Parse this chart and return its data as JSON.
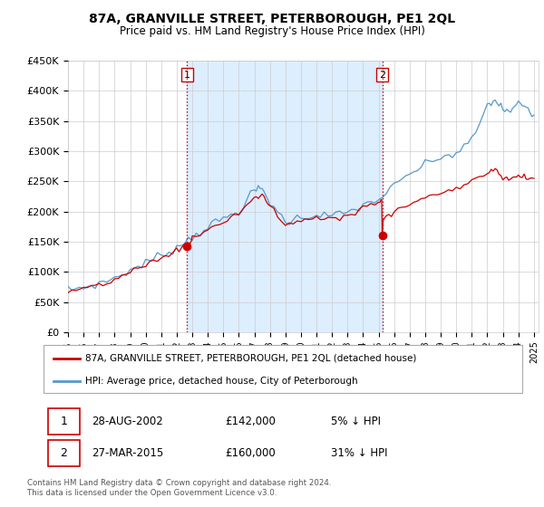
{
  "title": "87A, GRANVILLE STREET, PETERBOROUGH, PE1 2QL",
  "subtitle": "Price paid vs. HM Land Registry's House Price Index (HPI)",
  "legend_line1": "87A, GRANVILLE STREET, PETERBOROUGH, PE1 2QL (detached house)",
  "legend_line2": "HPI: Average price, detached house, City of Peterborough",
  "footnote": "Contains HM Land Registry data © Crown copyright and database right 2024.\nThis data is licensed under the Open Government Licence v3.0.",
  "transaction1_date": "28-AUG-2002",
  "transaction1_price": "£142,000",
  "transaction1_hpi": "5% ↓ HPI",
  "transaction2_date": "27-MAR-2015",
  "transaction2_price": "£160,000",
  "transaction2_hpi": "31% ↓ HPI",
  "price_line_color": "#cc0000",
  "hpi_line_color": "#5599cc",
  "shade_color": "#ddeeff",
  "vline_color": "#cc0000",
  "ylim_min": 0,
  "ylim_max": 450000,
  "yticks": [
    0,
    50000,
    100000,
    150000,
    200000,
    250000,
    300000,
    350000,
    400000,
    450000
  ],
  "ytick_labels": [
    "£0",
    "£50K",
    "£100K",
    "£150K",
    "£200K",
    "£250K",
    "£300K",
    "£350K",
    "£400K",
    "£450K"
  ],
  "transaction1_year": 2002.67,
  "transaction1_value": 142000,
  "transaction2_year": 2015.23,
  "transaction2_value": 160000,
  "background_color": "#ffffff",
  "grid_color": "#cccccc"
}
